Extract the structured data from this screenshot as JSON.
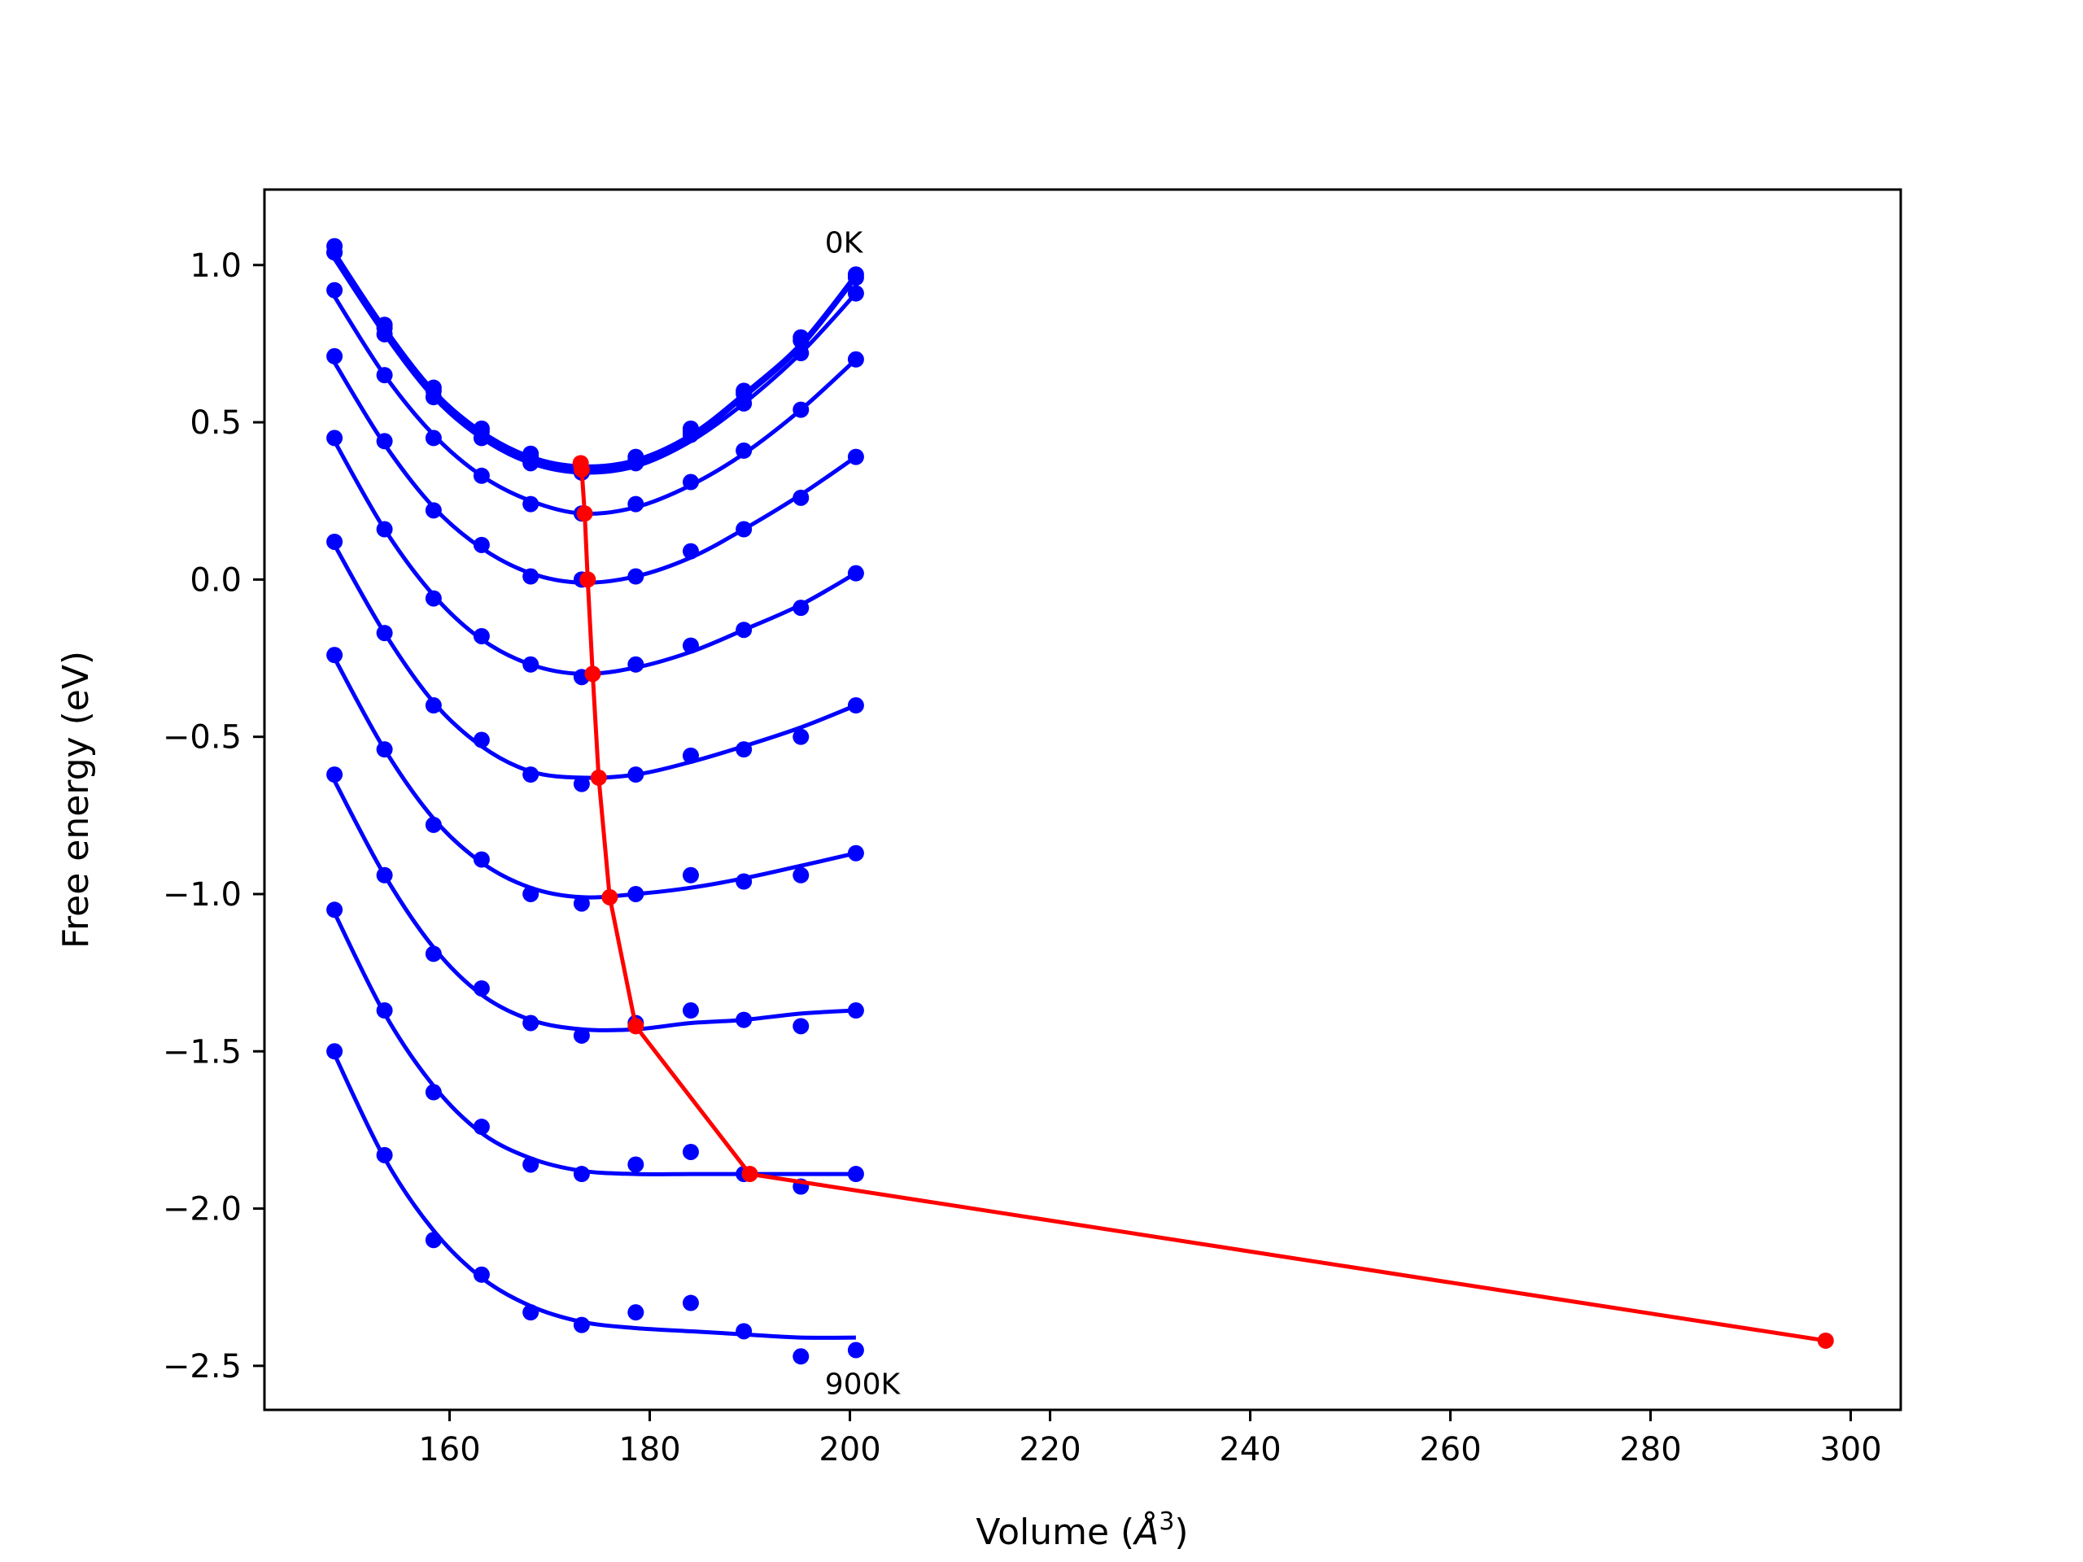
{
  "chart_data": {
    "type": "line",
    "xlabel_prefix": "Volume (",
    "xlabel_symbol": "Å",
    "xlabel_sup": "3",
    "xlabel_suffix": ")",
    "ylabel": "Free energy (eV)",
    "xlim": [
      141.5,
      305
    ],
    "ylim": [
      -2.64,
      1.24
    ],
    "x_ticks": [
      160,
      180,
      200,
      220,
      240,
      260,
      280,
      300
    ],
    "x_tick_labels": [
      "160",
      "180",
      "200",
      "220",
      "240",
      "260",
      "280",
      "300"
    ],
    "y_ticks": [
      1.0,
      0.5,
      0.0,
      -0.5,
      -1.0,
      -1.5,
      -2.0,
      -2.5
    ],
    "y_tick_labels": [
      "1.0",
      "0.5",
      "0.0",
      "−0.5",
      "−1.0",
      "−1.5",
      "−2.0",
      "−2.5"
    ],
    "grid": false,
    "annotations": [
      {
        "text": "0K",
        "x": 197.5,
        "y": 1.04
      },
      {
        "text": "900K",
        "x": 197.5,
        "y": -2.59
      }
    ],
    "volumes": [
      148.5,
      153.5,
      158.4,
      163.2,
      168.1,
      173.2,
      178.6,
      184.1,
      189.4,
      195.1,
      200.6
    ],
    "series": [
      {
        "color": "#0000ff",
        "points": [
          1.06,
          0.81,
          0.61,
          0.48,
          0.4,
          0.35,
          0.39,
          0.48,
          0.6,
          0.77,
          0.97
        ],
        "fit": [
          1.04,
          0.8,
          0.6,
          0.47,
          0.39,
          0.36,
          0.38,
          0.46,
          0.59,
          0.75,
          0.97
        ]
      },
      {
        "color": "#0000ff",
        "points": [
          1.04,
          0.8,
          0.6,
          0.47,
          0.39,
          0.35,
          0.38,
          0.47,
          0.59,
          0.76,
          0.96
        ],
        "fit": [
          1.03,
          0.79,
          0.59,
          0.46,
          0.38,
          0.35,
          0.37,
          0.45,
          0.58,
          0.74,
          0.96
        ]
      },
      {
        "color": "#0000ff",
        "points": [
          1.04,
          0.78,
          0.58,
          0.45,
          0.37,
          0.34,
          0.37,
          0.46,
          0.56,
          0.72,
          0.91
        ],
        "fit": [
          1.02,
          0.78,
          0.58,
          0.45,
          0.37,
          0.34,
          0.36,
          0.44,
          0.56,
          0.72,
          0.91
        ]
      },
      {
        "color": "#0000ff",
        "points": [
          0.92,
          0.65,
          0.45,
          0.33,
          0.24,
          0.21,
          0.24,
          0.31,
          0.41,
          0.54,
          0.7
        ],
        "fit": [
          0.9,
          0.65,
          0.46,
          0.33,
          0.25,
          0.21,
          0.23,
          0.3,
          0.4,
          0.54,
          0.7
        ]
      },
      {
        "color": "#0000ff",
        "points": [
          0.71,
          0.44,
          0.22,
          0.11,
          0.01,
          0.0,
          0.01,
          0.09,
          0.16,
          0.26,
          0.39
        ],
        "fit": [
          0.69,
          0.43,
          0.23,
          0.1,
          0.02,
          -0.01,
          0.01,
          0.07,
          0.16,
          0.27,
          0.39
        ]
      },
      {
        "color": "#0000ff",
        "points": [
          0.45,
          0.16,
          -0.06,
          -0.18,
          -0.27,
          -0.31,
          -0.27,
          -0.21,
          -0.16,
          -0.09,
          0.02
        ],
        "fit": [
          0.44,
          0.16,
          -0.05,
          -0.19,
          -0.27,
          -0.3,
          -0.28,
          -0.23,
          -0.16,
          -0.08,
          0.02
        ]
      },
      {
        "color": "#0000ff",
        "points": [
          0.12,
          -0.17,
          -0.4,
          -0.51,
          -0.62,
          -0.65,
          -0.62,
          -0.56,
          -0.54,
          -0.5,
          -0.4
        ],
        "fit": [
          0.11,
          -0.17,
          -0.39,
          -0.53,
          -0.61,
          -0.63,
          -0.62,
          -0.58,
          -0.53,
          -0.47,
          -0.4
        ]
      },
      {
        "color": "#0000ff",
        "points": [
          -0.24,
          -0.54,
          -0.78,
          -0.89,
          -1.0,
          -1.03,
          -1.0,
          -0.94,
          -0.96,
          -0.94,
          -0.87
        ],
        "fit": [
          -0.25,
          -0.54,
          -0.76,
          -0.9,
          -0.98,
          -1.01,
          -1.0,
          -0.98,
          -0.95,
          -0.91,
          -0.87
        ]
      },
      {
        "color": "#0000ff",
        "points": [
          -0.62,
          -0.94,
          -1.19,
          -1.3,
          -1.41,
          -1.45,
          -1.41,
          -1.37,
          -1.4,
          -1.42,
          -1.37
        ],
        "fit": [
          -0.64,
          -0.94,
          -1.17,
          -1.32,
          -1.4,
          -1.43,
          -1.43,
          -1.41,
          -1.4,
          -1.38,
          -1.37
        ]
      },
      {
        "color": "#0000ff",
        "points": [
          -1.05,
          -1.37,
          -1.63,
          -1.74,
          -1.86,
          -1.89,
          -1.86,
          -1.82,
          -1.89,
          -1.93,
          -1.89
        ],
        "fit": [
          -1.06,
          -1.38,
          -1.61,
          -1.76,
          -1.84,
          -1.88,
          -1.89,
          -1.89,
          -1.89,
          -1.89,
          -1.89
        ]
      },
      {
        "color": "#0000ff",
        "points": [
          -1.5,
          -1.83,
          -2.1,
          -2.21,
          -2.33,
          -2.37,
          -2.33,
          -2.3,
          -2.39,
          -2.47,
          -2.45
        ],
        "fit": [
          -1.51,
          -1.84,
          -2.07,
          -2.22,
          -2.31,
          -2.36,
          -2.38,
          -2.39,
          -2.4,
          -2.41,
          -2.41
        ]
      }
    ],
    "minimum_path": {
      "color": "#ff0000",
      "x": [
        173.1,
        173.2,
        173.5,
        173.8,
        174.3,
        174.9,
        176.0,
        178.6,
        190.0,
        297.5
      ],
      "y": [
        0.37,
        0.35,
        0.21,
        0.0,
        -0.3,
        -0.63,
        -1.01,
        -1.42,
        -1.89,
        -2.42
      ]
    }
  }
}
